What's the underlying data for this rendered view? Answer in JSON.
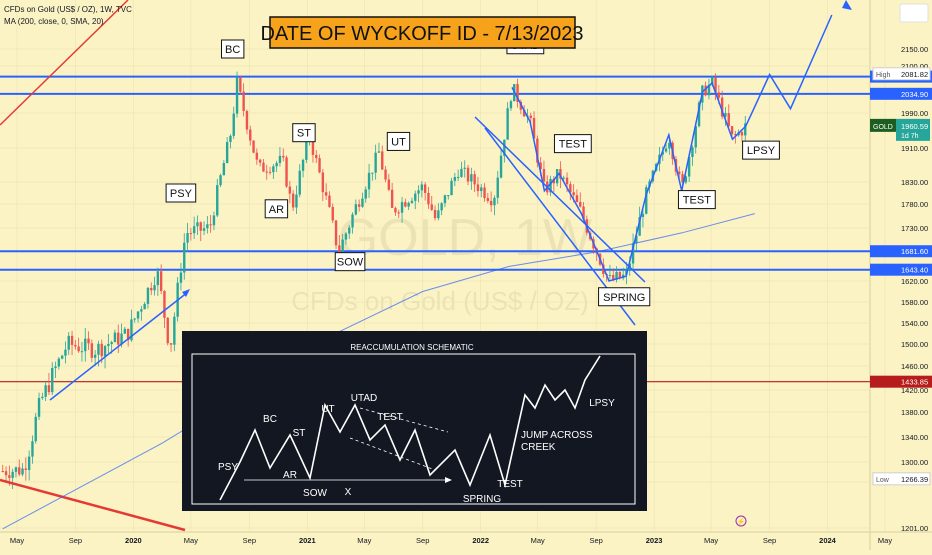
{
  "header": {
    "symbol_line": "CFDs on Gold (US$ / OZ), 1W, TVC",
    "indicator_line": "MA (200, close, 0, SMA, 20)"
  },
  "title_banner": "DATE OF WYCKOFF ID - 7/13/2023",
  "watermark": {
    "big": "GOLD, 1W",
    "small": "CFDs on Gold (US$ / OZ)"
  },
  "chart_data": {
    "type": "candlestick",
    "title": "DATE OF WYCKOFF ID - 7/13/2023",
    "symbol": "GOLD",
    "timeframe": "1W",
    "ylim": [
      1200,
      2230
    ],
    "y_ticks": [
      1201.0,
      1260.0,
      1300.0,
      1340.0,
      1380.0,
      1420.0,
      1460.0,
      1500.0,
      1540.0,
      1580.0,
      1620.0,
      1680.0,
      1730.0,
      1780.0,
      1830.0,
      1910.0,
      1990.0,
      2100.0,
      2150.0
    ],
    "x_ticks": [
      "May",
      "Sep",
      "2020",
      "May",
      "Sep",
      "2021",
      "May",
      "Sep",
      "2022",
      "May",
      "Sep",
      "2023",
      "May",
      "Sep",
      "2024",
      "May"
    ],
    "x_range": [
      "2019-04",
      "2024-06"
    ],
    "price_levels": [
      {
        "label": "2075.14",
        "value": 2075.14,
        "color": "#2962ff"
      },
      {
        "label": "2034.90",
        "value": 2034.9,
        "color": "#2962ff"
      },
      {
        "label": "1681.60",
        "value": 1681.6,
        "color": "#2962ff"
      },
      {
        "label": "1643.40",
        "value": 1643.4,
        "color": "#2962ff"
      },
      {
        "label": "1433.85",
        "value": 1433.85,
        "color": "#b71c1c"
      }
    ],
    "high": {
      "label": "High",
      "value": 2081.82
    },
    "low": {
      "label": "Low",
      "value": 1266.39
    },
    "last": {
      "ticker": "GOLD",
      "price": 1960.59,
      "countdown": "1d 7h"
    },
    "close_path": [
      [
        "2019-04-01",
        1282
      ],
      [
        "2019-05-15",
        1285
      ],
      [
        "2019-06-20",
        1400
      ],
      [
        "2019-08-15",
        1500
      ],
      [
        "2019-10-15",
        1490
      ],
      [
        "2019-12-20",
        1520
      ],
      [
        "2020-02-20",
        1640
      ],
      [
        "2020-03-18",
        1490
      ],
      [
        "2020-04-20",
        1720
      ],
      [
        "2020-06-10",
        1730
      ],
      [
        "2020-07-25",
        1950
      ],
      [
        "2020-08-06",
        2060
      ],
      [
        "2020-09-20",
        1860
      ],
      [
        "2020-11-10",
        1880
      ],
      [
        "2020-11-30",
        1770
      ],
      [
        "2021-01-05",
        1940
      ],
      [
        "2021-03-08",
        1680
      ],
      [
        "2021-06-01",
        1900
      ],
      [
        "2021-06-28",
        1765
      ],
      [
        "2021-09-01",
        1820
      ],
      [
        "2021-09-29",
        1745
      ],
      [
        "2021-11-15",
        1860
      ],
      [
        "2022-01-28",
        1790
      ],
      [
        "2022-03-08",
        2050
      ],
      [
        "2022-04-15",
        1970
      ],
      [
        "2022-05-15",
        1810
      ],
      [
        "2022-06-15",
        1850
      ],
      [
        "2022-08-01",
        1760
      ],
      [
        "2022-09-28",
        1620
      ],
      [
        "2022-11-03",
        1630
      ],
      [
        "2022-12-15",
        1800
      ],
      [
        "2023-02-01",
        1940
      ],
      [
        "2023-02-28",
        1810
      ],
      [
        "2023-04-13",
        2040
      ],
      [
        "2023-05-03",
        2060
      ],
      [
        "2023-06-15",
        1930
      ],
      [
        "2023-07-13",
        1960
      ]
    ],
    "projection": [
      [
        "2023-07-13",
        1960
      ],
      [
        "2023-09-01",
        2080
      ],
      [
        "2023-10-15",
        2000
      ],
      [
        "2024-01-10",
        2230
      ]
    ],
    "ma200": [
      [
        "2019-04-01",
        1200
      ],
      [
        "2019-09-01",
        1250
      ],
      [
        "2020-03-01",
        1330
      ],
      [
        "2020-09-01",
        1420
      ],
      [
        "2021-03-01",
        1520
      ],
      [
        "2021-09-01",
        1600
      ],
      [
        "2022-03-01",
        1650
      ],
      [
        "2022-09-01",
        1680
      ],
      [
        "2023-03-01",
        1720
      ],
      [
        "2023-08-01",
        1760
      ]
    ],
    "annotations": [
      {
        "label": "PSY",
        "date": "2020-04-10",
        "price": 1805
      },
      {
        "label": "BC",
        "date": "2020-07-28",
        "price": 2150
      },
      {
        "label": "AR",
        "date": "2020-10-28",
        "price": 1770
      },
      {
        "label": "ST",
        "date": "2020-12-25",
        "price": 1945
      },
      {
        "label": "SOW",
        "date": "2021-04-01",
        "price": 1660
      },
      {
        "label": "UT",
        "date": "2021-07-12",
        "price": 1925
      },
      {
        "label": "UTAD",
        "date": "2022-04-05",
        "price": 2160
      },
      {
        "label": "TEST",
        "date": "2022-07-14",
        "price": 1920
      },
      {
        "label": "SPRING",
        "date": "2022-10-30",
        "price": 1590
      },
      {
        "label": "TEST",
        "date": "2023-04-01",
        "price": 1790
      },
      {
        "label": "LPSY",
        "date": "2023-08-14",
        "price": 1905
      }
    ]
  },
  "inset": {
    "title": "REACCUMULATION SCHEMATIC",
    "labels": [
      "PSY",
      "BC",
      "AR",
      "ST",
      "SOW",
      "X",
      "UT",
      "UTAD",
      "TEST",
      "SPRING",
      "TEST",
      "JUMP ACROSS",
      "CREEK",
      "LPSY"
    ]
  },
  "colors": {
    "background": "#fbf3c4",
    "up_candle": "#26a69a",
    "down_candle": "#ef5350",
    "level_blue": "#2962ff",
    "trend_red": "#e53935",
    "banner_bg": "#f7a21b",
    "inset_bg": "#131722"
  }
}
